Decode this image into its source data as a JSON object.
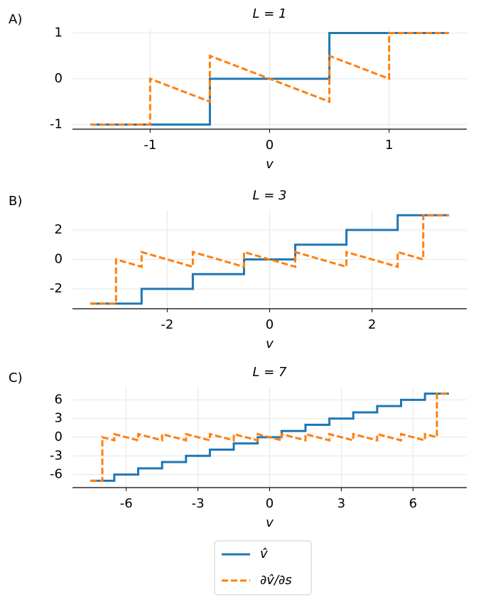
{
  "chart_data": [
    {
      "type": "line",
      "label": "A)",
      "title": "L = 1",
      "x_label": "v",
      "x": [
        -1.5,
        -1,
        -1,
        -0.5,
        -0.5,
        0.5,
        0.5,
        1,
        1,
        1.5
      ],
      "series": [
        {
          "name": "v̂",
          "color": "#1f77b4",
          "dash": false,
          "values": [
            -1,
            -1,
            -1,
            -1,
            0,
            0,
            1,
            1,
            1,
            1
          ]
        },
        {
          "name": "∂v̂/∂s",
          "color": "#ff7f0e",
          "dash": true,
          "values": [
            -1,
            -1,
            0,
            -0.5,
            0.5,
            -0.5,
            0.5,
            0,
            1,
            1
          ]
        }
      ],
      "xlim": [
        -1.65,
        1.65
      ],
      "ylim": [
        -1.1,
        1.1
      ],
      "xticks": [
        -1,
        0,
        1
      ],
      "yticks": [
        -1,
        0,
        1
      ],
      "grid": true
    },
    {
      "type": "line",
      "label": "B)",
      "title": "L = 3",
      "x_label": "v",
      "x": [
        -3.5,
        -3,
        -3,
        -2.5,
        -2.5,
        -1.5,
        -1.5,
        -0.5,
        -0.5,
        0.5,
        0.5,
        1.5,
        1.5,
        2.5,
        2.5,
        3,
        3,
        3.5
      ],
      "series": [
        {
          "name": "v̂",
          "color": "#1f77b4",
          "dash": false,
          "values": [
            -3,
            -3,
            -3,
            -3,
            -2,
            -2,
            -1,
            -1,
            0,
            0,
            1,
            1,
            2,
            2,
            3,
            3,
            3,
            3
          ]
        },
        {
          "name": "∂v̂/∂s",
          "color": "#ff7f0e",
          "dash": true,
          "values": [
            -3,
            -3,
            0,
            -0.5,
            0.5,
            -0.5,
            0.5,
            -0.5,
            0.5,
            -0.5,
            0.5,
            -0.5,
            0.5,
            -0.5,
            0.5,
            0,
            3,
            3
          ]
        }
      ],
      "xlim": [
        -3.85,
        3.85
      ],
      "ylim": [
        -3.35,
        3.35
      ],
      "xticks": [
        -2,
        0,
        2
      ],
      "yticks": [
        -2,
        0,
        2
      ],
      "grid": true
    },
    {
      "type": "line",
      "label": "C)",
      "title": "L = 7",
      "x_label": "v",
      "x": [
        -7.5,
        -7,
        -7,
        -6.5,
        -6.5,
        -5.5,
        -5.5,
        -4.5,
        -4.5,
        -3.5,
        -3.5,
        -2.5,
        -2.5,
        -1.5,
        -1.5,
        -0.5,
        -0.5,
        0.5,
        0.5,
        1.5,
        1.5,
        2.5,
        2.5,
        3.5,
        3.5,
        4.5,
        4.5,
        5.5,
        5.5,
        6.5,
        6.5,
        7,
        7,
        7.5
      ],
      "series": [
        {
          "name": "v̂",
          "color": "#1f77b4",
          "dash": false,
          "values": [
            -7,
            -7,
            -7,
            -7,
            -6,
            -6,
            -5,
            -5,
            -4,
            -4,
            -3,
            -3,
            -2,
            -2,
            -1,
            -1,
            0,
            0,
            1,
            1,
            2,
            2,
            3,
            3,
            4,
            4,
            5,
            5,
            6,
            6,
            7,
            7,
            7,
            7
          ]
        },
        {
          "name": "∂v̂/∂s",
          "color": "#ff7f0e",
          "dash": true,
          "values": [
            -7,
            -7,
            0,
            -0.5,
            0.5,
            -0.5,
            0.5,
            -0.5,
            0.5,
            -0.5,
            0.5,
            -0.5,
            0.5,
            -0.5,
            0.5,
            -0.5,
            0.5,
            -0.5,
            0.5,
            -0.5,
            0.5,
            -0.5,
            0.5,
            -0.5,
            0.5,
            -0.5,
            0.5,
            -0.5,
            0.5,
            -0.5,
            0.5,
            0,
            7,
            7
          ]
        }
      ],
      "xlim": [
        -8.25,
        8.25
      ],
      "ylim": [
        -8.1,
        8.1
      ],
      "xticks": [
        -6,
        -3,
        0,
        3,
        6
      ],
      "yticks": [
        -6,
        -3,
        0,
        3,
        6
      ],
      "grid": true
    }
  ]
}
